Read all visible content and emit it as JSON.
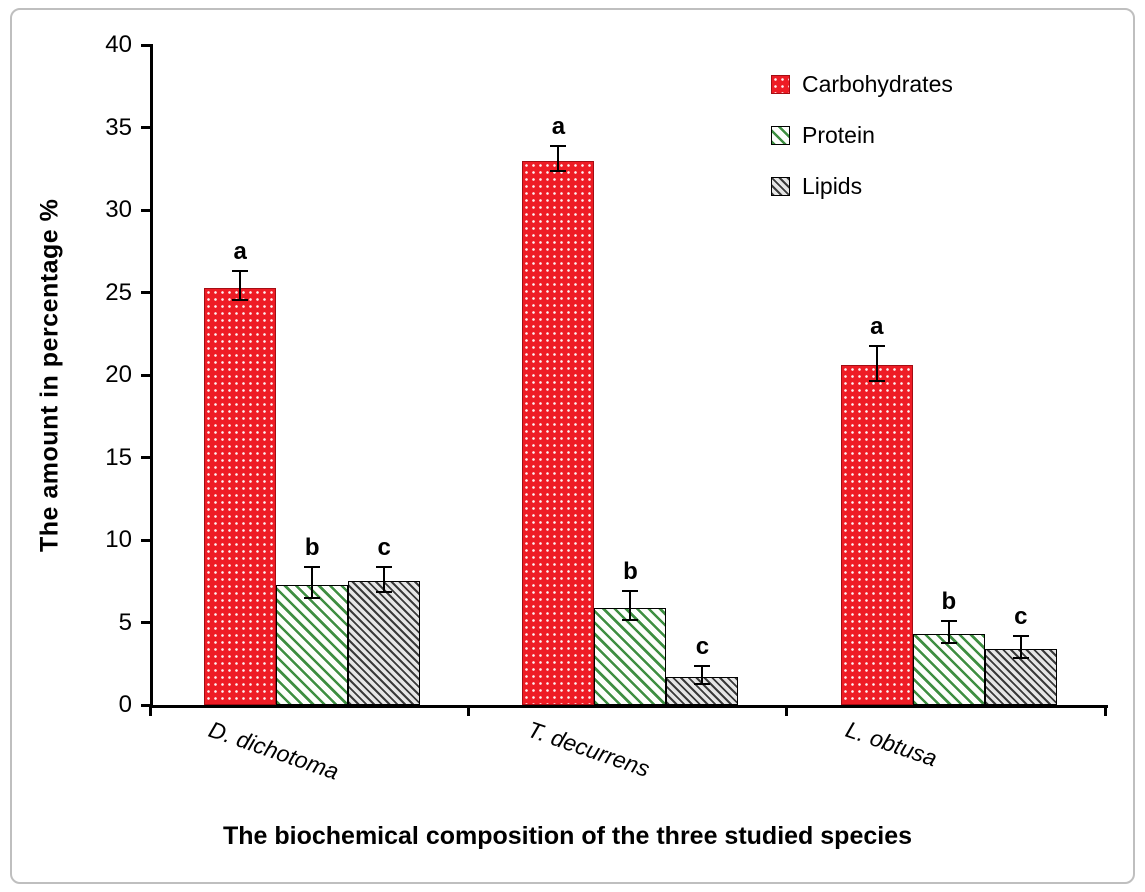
{
  "chart_data": {
    "type": "bar",
    "title": "",
    "xlabel": "The biochemical composition of the three studied species",
    "ylabel": "The amount in  percentage %",
    "ylim": [
      0,
      40
    ],
    "yticks": [
      0,
      5,
      10,
      15,
      20,
      25,
      30,
      35,
      40
    ],
    "grid": false,
    "legend_position": "top-right",
    "categories": [
      "D. dichotoma",
      "T. decurrens",
      "L. obtusa"
    ],
    "series": [
      {
        "name": "Carbohydrates",
        "values": [
          25.3,
          33.0,
          20.6
        ],
        "errors": [
          0.8,
          0.7,
          1.0
        ],
        "letters": [
          "a",
          "a",
          "a"
        ],
        "color": "#ee1c25",
        "pattern": "dots"
      },
      {
        "name": "Protein",
        "values": [
          7.3,
          5.9,
          4.3
        ],
        "errors": [
          0.9,
          0.8,
          0.6
        ],
        "letters": [
          "b",
          "b",
          "b"
        ],
        "color": "#3e8e41",
        "pattern": "diag"
      },
      {
        "name": "Lipids",
        "values": [
          7.5,
          1.7,
          3.4
        ],
        "errors": [
          0.7,
          0.5,
          0.6
        ],
        "letters": [
          "c",
          "c",
          "c"
        ],
        "color": "#3a3a3a",
        "pattern": "diag-dense"
      }
    ]
  }
}
